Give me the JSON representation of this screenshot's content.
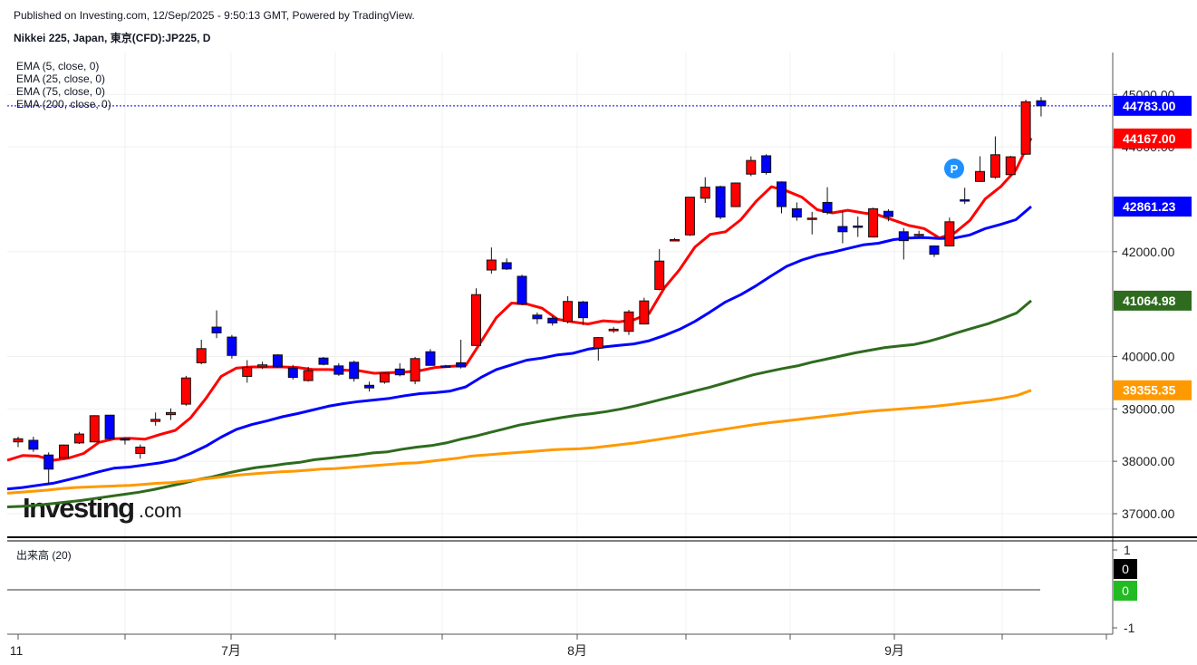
{
  "header": {
    "published": "Published on Investing.com, 12/Sep/2025 - 9:50:13 GMT, Powered by TradingView.",
    "symbol": "Nikkei 225, Japan, 東京(CFD):JP225, D"
  },
  "legend": {
    "ema5": "EMA (5, close, 0)",
    "ema25": "EMA (25, close, 0)",
    "ema75": "EMA (75, close, 0)",
    "ema200": "EMA (200, close, 0)"
  },
  "volume": {
    "title": "出来高 (20)",
    "ticks": [
      "1",
      "-1"
    ],
    "tag_black": "0",
    "tag_green": "0"
  },
  "watermark": {
    "brand": "Investing",
    "suffix": ".com"
  },
  "marker": {
    "label": "P"
  },
  "price_tags": {
    "last": "44783.00",
    "ema5": "44167.00",
    "ema25": "42861.23",
    "ema75": "41064.98",
    "ema200": "39355.35"
  },
  "colors": {
    "up_candle": "#ff0000",
    "down_candle": "#0000ff",
    "ema5": "#ff0000",
    "ema25": "#0000ff",
    "ema75": "#2e6b1e",
    "ema200": "#ff9900",
    "last_price_line": "#0000ff",
    "marker": "#1e90ff",
    "volume_green": "#22bb22"
  },
  "chart_data": {
    "type": "candlestick",
    "title": "Nikkei 225, Japan, 東京(CFD):JP225, D",
    "y_ticks": [
      "37000.00",
      "38000.00",
      "39000.00",
      "40000.00",
      "42000.00",
      "44000.00",
      "45000.00"
    ],
    "x_ticks": [
      "11",
      "7月",
      "8月",
      "9月"
    ],
    "ylim": [
      36550,
      45800
    ],
    "grid": true,
    "last_price": 44783,
    "candles": [
      {
        "o": 38370,
        "h": 38470,
        "l": 38270,
        "c": 38430
      },
      {
        "o": 38400,
        "h": 38470,
        "l": 38180,
        "c": 38230
      },
      {
        "o": 38120,
        "h": 38170,
        "l": 37570,
        "c": 37850
      },
      {
        "o": 38070,
        "h": 38320,
        "l": 38050,
        "c": 38310
      },
      {
        "o": 38350,
        "h": 38560,
        "l": 38330,
        "c": 38520
      },
      {
        "o": 38370,
        "h": 38880,
        "l": 38360,
        "c": 38870
      },
      {
        "o": 38880,
        "h": 38880,
        "l": 38410,
        "c": 38430
      },
      {
        "o": 38430,
        "h": 38460,
        "l": 38320,
        "c": 38410
      },
      {
        "o": 38150,
        "h": 38320,
        "l": 38050,
        "c": 38270
      },
      {
        "o": 38760,
        "h": 38930,
        "l": 38680,
        "c": 38800
      },
      {
        "o": 38890,
        "h": 39010,
        "l": 38790,
        "c": 38930
      },
      {
        "o": 39090,
        "h": 39630,
        "l": 39060,
        "c": 39590
      },
      {
        "o": 39880,
        "h": 40320,
        "l": 39850,
        "c": 40150
      },
      {
        "o": 40560,
        "h": 40880,
        "l": 40350,
        "c": 40450
      },
      {
        "o": 40370,
        "h": 40410,
        "l": 39960,
        "c": 40020
      },
      {
        "o": 39620,
        "h": 39930,
        "l": 39500,
        "c": 39790
      },
      {
        "o": 39800,
        "h": 39900,
        "l": 39760,
        "c": 39840
      },
      {
        "o": 40030,
        "h": 40040,
        "l": 39780,
        "c": 39800
      },
      {
        "o": 39780,
        "h": 39840,
        "l": 39560,
        "c": 39600
      },
      {
        "o": 39540,
        "h": 39800,
        "l": 39520,
        "c": 39730
      },
      {
        "o": 39970,
        "h": 39990,
        "l": 39830,
        "c": 39850
      },
      {
        "o": 39820,
        "h": 39870,
        "l": 39630,
        "c": 39660
      },
      {
        "o": 39890,
        "h": 39920,
        "l": 39520,
        "c": 39580
      },
      {
        "o": 39450,
        "h": 39520,
        "l": 39330,
        "c": 39400
      },
      {
        "o": 39510,
        "h": 39690,
        "l": 39480,
        "c": 39680
      },
      {
        "o": 39760,
        "h": 39870,
        "l": 39620,
        "c": 39650
      },
      {
        "o": 39530,
        "h": 39990,
        "l": 39470,
        "c": 39960
      },
      {
        "o": 40090,
        "h": 40140,
        "l": 39830,
        "c": 39830
      },
      {
        "o": 39820,
        "h": 39840,
        "l": 39790,
        "c": 39810
      },
      {
        "o": 39880,
        "h": 40320,
        "l": 39770,
        "c": 39800
      },
      {
        "o": 40210,
        "h": 41300,
        "l": 40200,
        "c": 41180
      },
      {
        "o": 41650,
        "h": 42080,
        "l": 41580,
        "c": 41840
      },
      {
        "o": 41790,
        "h": 41870,
        "l": 41650,
        "c": 41670
      },
      {
        "o": 41530,
        "h": 41560,
        "l": 40980,
        "c": 41000
      },
      {
        "o": 40790,
        "h": 40840,
        "l": 40620,
        "c": 40720
      },
      {
        "o": 40730,
        "h": 40770,
        "l": 40590,
        "c": 40640
      },
      {
        "o": 40670,
        "h": 41150,
        "l": 40630,
        "c": 41050
      },
      {
        "o": 41040,
        "h": 41060,
        "l": 40600,
        "c": 40740
      },
      {
        "o": 40160,
        "h": 40370,
        "l": 39920,
        "c": 40360
      },
      {
        "o": 40490,
        "h": 40560,
        "l": 40450,
        "c": 40520
      },
      {
        "o": 40480,
        "h": 40890,
        "l": 40410,
        "c": 40850
      },
      {
        "o": 40620,
        "h": 41120,
        "l": 40610,
        "c": 41060
      },
      {
        "o": 41280,
        "h": 42050,
        "l": 41260,
        "c": 41820
      },
      {
        "o": 42220,
        "h": 42260,
        "l": 42210,
        "c": 42230
      },
      {
        "o": 42320,
        "h": 43020,
        "l": 42300,
        "c": 43040
      },
      {
        "o": 43020,
        "h": 43420,
        "l": 42930,
        "c": 43230
      },
      {
        "o": 43240,
        "h": 43260,
        "l": 42620,
        "c": 42660
      },
      {
        "o": 42860,
        "h": 43320,
        "l": 42850,
        "c": 43310
      },
      {
        "o": 43480,
        "h": 43820,
        "l": 43440,
        "c": 43740
      },
      {
        "o": 43830,
        "h": 43860,
        "l": 43470,
        "c": 43510
      },
      {
        "o": 43330,
        "h": 43340,
        "l": 42730,
        "c": 42860
      },
      {
        "o": 42820,
        "h": 42940,
        "l": 42590,
        "c": 42660
      },
      {
        "o": 42630,
        "h": 42760,
        "l": 42330,
        "c": 42640
      },
      {
        "o": 42940,
        "h": 43230,
        "l": 42710,
        "c": 42750
      },
      {
        "o": 42480,
        "h": 42780,
        "l": 42160,
        "c": 42380
      },
      {
        "o": 42490,
        "h": 42670,
        "l": 42280,
        "c": 42480
      },
      {
        "o": 42280,
        "h": 42840,
        "l": 42270,
        "c": 42820
      },
      {
        "o": 42770,
        "h": 42810,
        "l": 42580,
        "c": 42670
      },
      {
        "o": 42380,
        "h": 42450,
        "l": 41850,
        "c": 42210
      },
      {
        "o": 42320,
        "h": 42400,
        "l": 42260,
        "c": 42330
      },
      {
        "o": 42110,
        "h": 42120,
        "l": 41900,
        "c": 41950
      },
      {
        "o": 42110,
        "h": 42650,
        "l": 42100,
        "c": 42570
      },
      {
        "o": 42990,
        "h": 43220,
        "l": 42910,
        "c": 42980
      },
      {
        "o": 43340,
        "h": 43820,
        "l": 43330,
        "c": 43530
      },
      {
        "o": 43420,
        "h": 44200,
        "l": 43390,
        "c": 43850
      },
      {
        "o": 43470,
        "h": 43830,
        "l": 43460,
        "c": 43810
      },
      {
        "o": 43860,
        "h": 44900,
        "l": 43850,
        "c": 44860
      },
      {
        "o": 44880,
        "h": 44950,
        "l": 44580,
        "c": 44783
      }
    ],
    "series": [
      {
        "name": "EMA (5, close, 0)",
        "color": "#ff0000",
        "width": 3,
        "values": [
          38020,
          38110,
          38100,
          38020,
          38060,
          38150,
          38360,
          38430,
          38440,
          38420,
          38510,
          38590,
          38830,
          39200,
          39620,
          39780,
          39800,
          39800,
          39800,
          39790,
          39750,
          39750,
          39740,
          39730,
          39680,
          39690,
          39700,
          39730,
          39790,
          39810,
          39830,
          40280,
          40740,
          41020,
          41000,
          40920,
          40710,
          40660,
          40620,
          40680,
          40660,
          40700,
          40820,
          41310,
          41660,
          42090,
          42330,
          42380,
          42610,
          42960,
          43240,
          43160,
          43040,
          42800,
          42740,
          42790,
          42740,
          42700,
          42600,
          42500,
          42440,
          42260,
          42360,
          42600,
          43010,
          43240,
          43560,
          44167
        ]
      },
      {
        "name": "EMA (25, close, 0)",
        "color": "#0000ff",
        "width": 3,
        "values": [
          37470,
          37500,
          37540,
          37580,
          37650,
          37720,
          37800,
          37870,
          37890,
          37930,
          37970,
          38030,
          38150,
          38290,
          38460,
          38610,
          38700,
          38770,
          38850,
          38910,
          38980,
          39050,
          39100,
          39140,
          39170,
          39200,
          39250,
          39290,
          39310,
          39340,
          39420,
          39600,
          39750,
          39840,
          39930,
          39970,
          40030,
          40060,
          40140,
          40180,
          40210,
          40240,
          40300,
          40400,
          40520,
          40670,
          40850,
          41040,
          41180,
          41350,
          41540,
          41720,
          41840,
          41930,
          41990,
          42060,
          42130,
          42160,
          42230,
          42260,
          42270,
          42250,
          42260,
          42320,
          42440,
          42520,
          42610,
          42861
        ]
      },
      {
        "name": "EMA (75, close, 0)",
        "color": "#2e6b1e",
        "width": 3,
        "values": [
          37130,
          37140,
          37160,
          37190,
          37220,
          37250,
          37290,
          37330,
          37370,
          37410,
          37460,
          37520,
          37580,
          37650,
          37700,
          37770,
          37830,
          37880,
          37910,
          37950,
          37980,
          38030,
          38060,
          38090,
          38120,
          38160,
          38180,
          38230,
          38270,
          38300,
          38350,
          38420,
          38480,
          38550,
          38620,
          38690,
          38740,
          38790,
          38840,
          38880,
          38910,
          38950,
          39000,
          39060,
          39130,
          39200,
          39270,
          39340,
          39410,
          39490,
          39570,
          39650,
          39710,
          39770,
          39820,
          39890,
          39950,
          40010,
          40070,
          40120,
          40170,
          40200,
          40230,
          40290,
          40370,
          40460,
          40540,
          40620,
          40720,
          40830,
          41064
        ]
      },
      {
        "name": "EMA (200, close, 0)",
        "color": "#ff9900",
        "width": 3,
        "values": [
          37390,
          37410,
          37430,
          37450,
          37480,
          37500,
          37510,
          37520,
          37530,
          37540,
          37560,
          37580,
          37590,
          37620,
          37650,
          37680,
          37710,
          37740,
          37760,
          37780,
          37800,
          37810,
          37830,
          37850,
          37860,
          37880,
          37900,
          37920,
          37940,
          37960,
          37970,
          38000,
          38030,
          38060,
          38100,
          38120,
          38140,
          38160,
          38180,
          38200,
          38220,
          38230,
          38240,
          38260,
          38290,
          38320,
          38350,
          38390,
          38430,
          38470,
          38510,
          38550,
          38590,
          38630,
          38670,
          38710,
          38740,
          38770,
          38800,
          38830,
          38860,
          38890,
          38920,
          38950,
          38970,
          38990,
          39010,
          39030,
          39050,
          39080,
          39110,
          39140,
          39170,
          39210,
          39260,
          39355
        ]
      }
    ]
  }
}
